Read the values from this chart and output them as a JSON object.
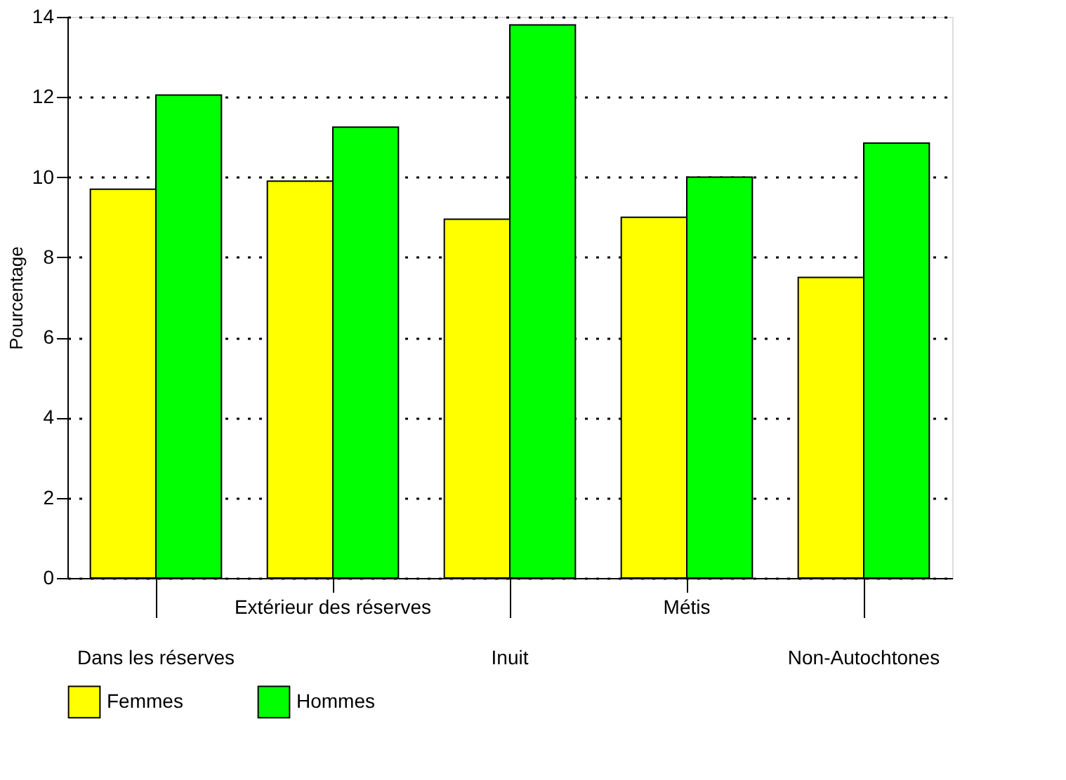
{
  "chart_data": {
    "type": "bar",
    "ylabel": "Pourcentage",
    "categories": [
      "Dans les réserves",
      "Extérieur des réserves",
      "Inuit",
      "Métis",
      "Non-Autochtones"
    ],
    "series": [
      {
        "name": "Femmes",
        "color": "#ffff00",
        "values": [
          9.7,
          9.9,
          8.95,
          9.0,
          7.5
        ]
      },
      {
        "name": "Hommes",
        "color": "#00ff00",
        "values": [
          12.05,
          11.25,
          13.8,
          10.0,
          10.85
        ]
      }
    ],
    "ylim": [
      0,
      14
    ],
    "yticks": [
      0,
      2,
      4,
      6,
      8,
      10,
      12,
      14
    ],
    "grid": "y",
    "legend": "bottom"
  }
}
